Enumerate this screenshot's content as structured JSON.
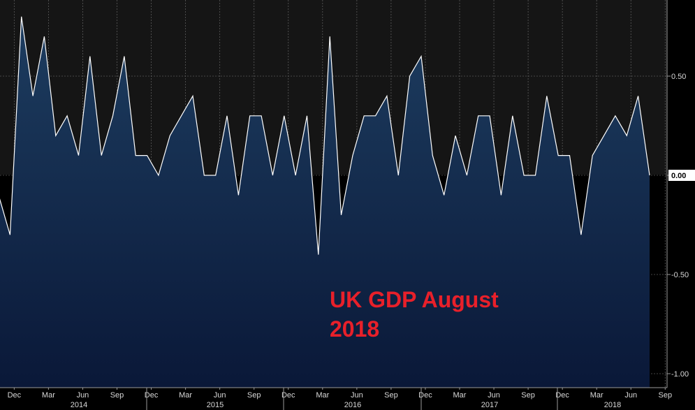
{
  "chart_data": {
    "type": "area",
    "title": "",
    "xlabel": "",
    "ylabel": "",
    "ylim": [
      -1.05,
      0.85
    ],
    "y_ticks": [
      0.5,
      0.0,
      -0.5,
      -1.0
    ],
    "y_tick_labels": [
      "0.50",
      "0.00",
      "-0.50",
      "-1.00"
    ],
    "grid": true,
    "annotation": [
      "UK GDP August",
      "2018"
    ],
    "last_value_label": "0.00",
    "x_month_labels": [
      "Dec",
      "Mar",
      "Jun",
      "Sep",
      "Dec",
      "Mar",
      "Jun",
      "Sep",
      "Dec",
      "Mar",
      "Jun",
      "Sep",
      "Dec",
      "Mar",
      "Jun",
      "Sep",
      "Dec",
      "Mar",
      "Jun",
      "Sep"
    ],
    "x_year_labels": [
      "2014",
      "2015",
      "2016",
      "2017",
      "2018"
    ],
    "series": [
      {
        "values": [
          -0.1,
          -0.3,
          0.8,
          0.4,
          0.7,
          0.2,
          0.3,
          0.1,
          0.6,
          0.1,
          0.3,
          0.6,
          0.1,
          0.1,
          0.0,
          0.2,
          0.3,
          0.4,
          0.0,
          0.0,
          0.3,
          -0.1,
          0.3,
          0.3,
          0.0,
          0.3,
          0.0,
          0.3,
          -0.4,
          0.7,
          -0.2,
          0.1,
          0.3,
          0.3,
          0.4,
          0.0,
          0.5,
          0.6,
          0.1,
          -0.1,
          0.2,
          0.0,
          0.3,
          0.3,
          -0.1,
          0.3,
          0.0,
          0.0,
          0.4,
          0.1,
          0.1,
          -0.3,
          0.1,
          0.2,
          0.3,
          0.2,
          0.4,
          0.0
        ]
      }
    ],
    "colors": {
      "background": "#000000",
      "upper_band": "#161616",
      "area_fill_top": "#1c3a5c",
      "area_fill_bottom": "#0a1a38",
      "line": "#ffffff",
      "annotation": "#e8202a"
    }
  }
}
